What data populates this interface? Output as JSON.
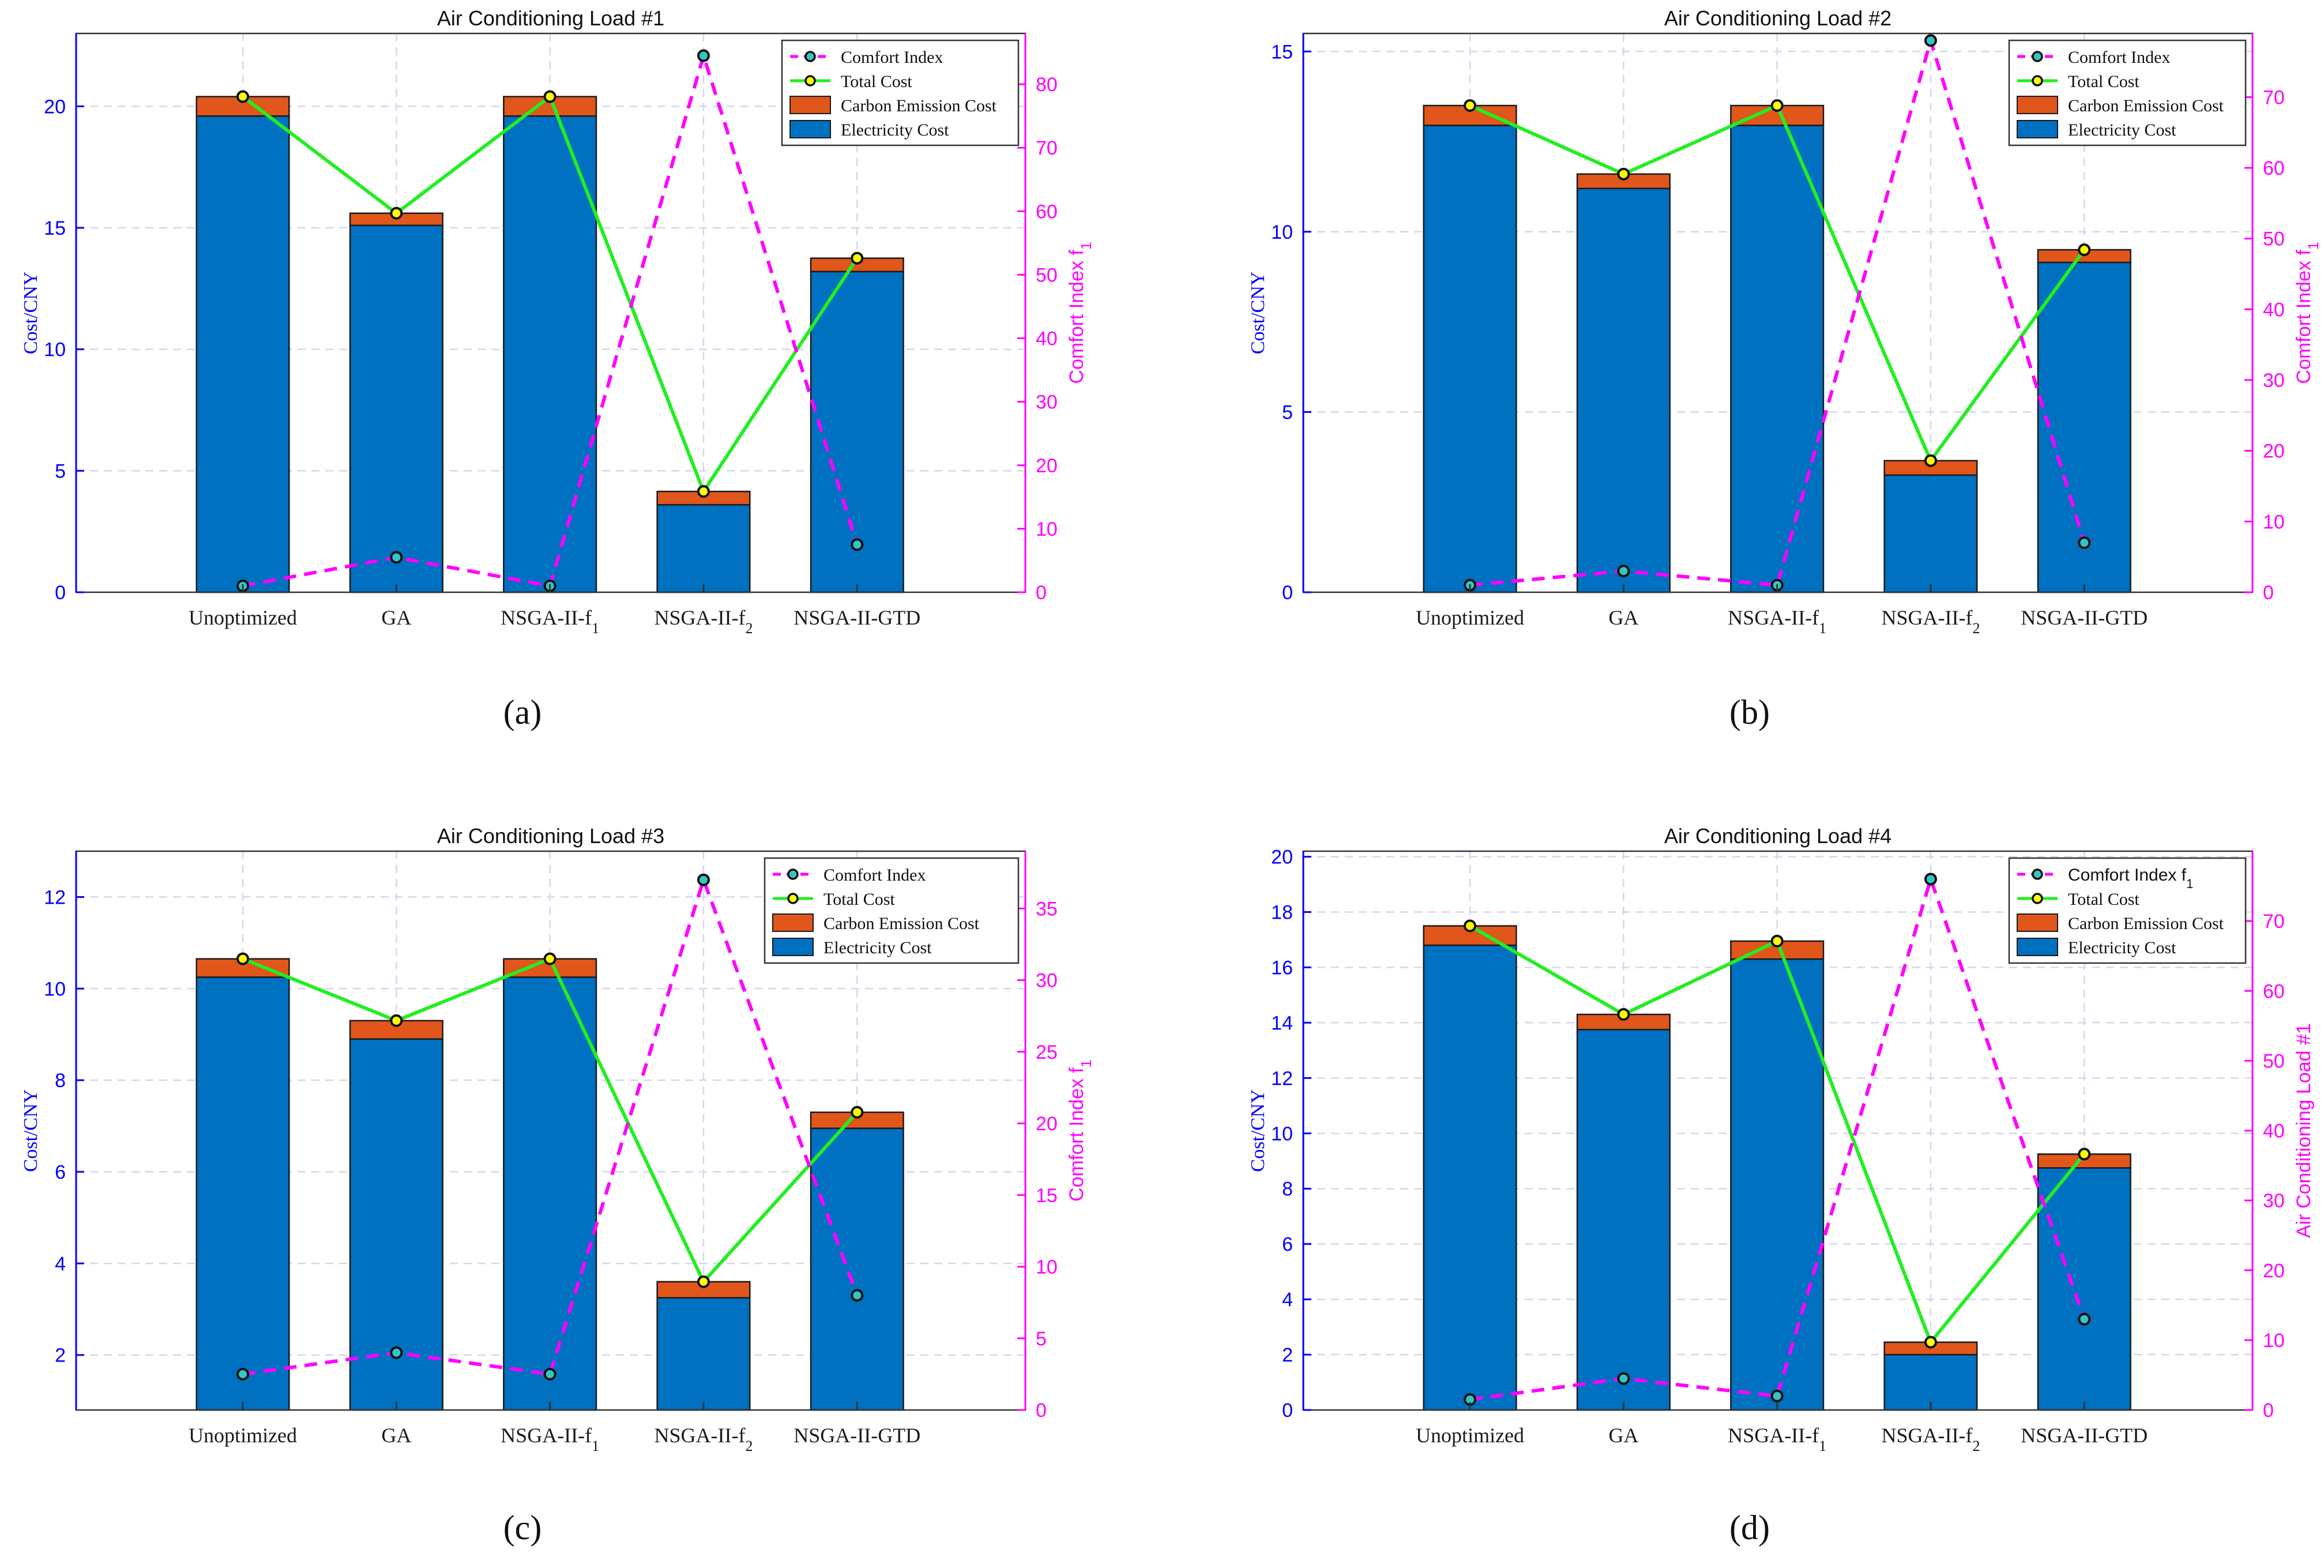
{
  "figure": {
    "bar_colors": {
      "electricity": "#0070C0",
      "carbon": "#E0561B"
    },
    "line_colors": {
      "total": "#22EE22",
      "comfort": "#FF00FF",
      "marker_total": "#FFFF00",
      "marker_comfort": "#33C6C6"
    },
    "axis_colors": {
      "left": "#0000FF",
      "right": "#FF00FF",
      "frame": "#333333",
      "grid": "#D6D6EE"
    }
  },
  "chart_data": [
    {
      "type": "bar",
      "panel_label": "(a)",
      "title": "Air Conditioning Load #1",
      "categories": [
        {
          "main": "Unoptimized",
          "sub": ""
        },
        {
          "main": "GA",
          "sub": ""
        },
        {
          "main": "NSGA-II-f",
          "sub": "1"
        },
        {
          "main": "NSGA-II-f",
          "sub": "2"
        },
        {
          "main": "NSGA-II-GTD",
          "sub": ""
        }
      ],
      "ylabel_left": "Cost/CNY",
      "ylabel_right": {
        "main": "Comfort Index f",
        "sub": "1"
      },
      "ylim_left": [
        0,
        23
      ],
      "yticks_left": [
        0,
        5,
        10,
        15,
        20
      ],
      "ylim_right": [
        0,
        88
      ],
      "yticks_right": [
        0,
        10,
        20,
        30,
        40,
        50,
        60,
        70,
        80
      ],
      "grid": true,
      "legend_position": "top-right",
      "legend": [
        {
          "key": "comfort",
          "text": "Comfort Index",
          "sub": ""
        },
        {
          "key": "total",
          "text": "Total Cost",
          "sub": ""
        },
        {
          "key": "carbon",
          "text": "Carbon Emission Cost",
          "sub": ""
        },
        {
          "key": "electricity",
          "text": "Electricity Cost",
          "sub": ""
        }
      ],
      "series": [
        {
          "name": "Electricity Cost",
          "kind": "stacked-bar",
          "axis": "left",
          "values": [
            19.6,
            15.1,
            19.6,
            3.6,
            13.2
          ]
        },
        {
          "name": "Carbon Emission Cost",
          "kind": "stacked-bar",
          "axis": "left",
          "values": [
            0.8,
            0.5,
            0.8,
            0.55,
            0.55
          ]
        },
        {
          "name": "Total Cost",
          "kind": "line",
          "axis": "left",
          "values": [
            20.4,
            15.6,
            20.4,
            4.15,
            13.75
          ]
        },
        {
          "name": "Comfort Index",
          "kind": "dashed-line",
          "axis": "right",
          "values": [
            1,
            5.5,
            1,
            84.5,
            7.5
          ]
        }
      ]
    },
    {
      "type": "bar",
      "panel_label": "(b)",
      "title": "Air Conditioning Load #2",
      "categories": [
        {
          "main": "Unoptimized",
          "sub": ""
        },
        {
          "main": "GA",
          "sub": ""
        },
        {
          "main": "NSGA-II-f",
          "sub": "1"
        },
        {
          "main": "NSGA-II-f",
          "sub": "2"
        },
        {
          "main": "NSGA-II-GTD",
          "sub": ""
        }
      ],
      "ylabel_left": "Cost/CNY",
      "ylabel_right": {
        "main": "Comfort Index f",
        "sub": "1"
      },
      "ylim_left": [
        0,
        15.5
      ],
      "yticks_left": [
        0,
        5,
        10,
        15
      ],
      "ylim_right": [
        0,
        79
      ],
      "yticks_right": [
        0,
        10,
        20,
        30,
        40,
        50,
        60,
        70
      ],
      "grid": true,
      "legend_position": "top-right",
      "legend": [
        {
          "key": "comfort",
          "text": "Comfort Index",
          "sub": ""
        },
        {
          "key": "total",
          "text": "Total Cost",
          "sub": ""
        },
        {
          "key": "carbon",
          "text": "Carbon Emission Cost",
          "sub": ""
        },
        {
          "key": "electricity",
          "text": "Electricity Cost",
          "sub": ""
        }
      ],
      "series": [
        {
          "name": "Electricity Cost",
          "kind": "stacked-bar",
          "axis": "left",
          "values": [
            12.95,
            11.2,
            12.95,
            3.25,
            9.15
          ]
        },
        {
          "name": "Carbon Emission Cost",
          "kind": "stacked-bar",
          "axis": "left",
          "values": [
            0.55,
            0.4,
            0.55,
            0.4,
            0.35
          ]
        },
        {
          "name": "Total Cost",
          "kind": "line",
          "axis": "left",
          "values": [
            13.5,
            11.6,
            13.5,
            3.65,
            9.5
          ]
        },
        {
          "name": "Comfort Index",
          "kind": "dashed-line",
          "axis": "right",
          "values": [
            1,
            3,
            1,
            78,
            7
          ]
        }
      ]
    },
    {
      "type": "bar",
      "panel_label": "(c)",
      "title": "Air Conditioning Load #3",
      "categories": [
        {
          "main": "Unoptimized",
          "sub": ""
        },
        {
          "main": "GA",
          "sub": ""
        },
        {
          "main": "NSGA-II-f",
          "sub": "1"
        },
        {
          "main": "NSGA-II-f",
          "sub": "2"
        },
        {
          "main": "NSGA-II-GTD",
          "sub": ""
        }
      ],
      "ylabel_left": "Cost/CNY",
      "ylabel_right": {
        "main": "Comfort Index f",
        "sub": "1"
      },
      "ylim_left": [
        0.8,
        13
      ],
      "yticks_left": [
        2,
        4,
        6,
        8,
        10,
        12
      ],
      "ylim_right": [
        0,
        39
      ],
      "yticks_right": [
        0,
        5,
        10,
        15,
        20,
        25,
        30,
        35
      ],
      "grid": true,
      "legend_position": "top-right",
      "legend": [
        {
          "key": "comfort",
          "text": "Comfort Index",
          "sub": ""
        },
        {
          "key": "total",
          "text": "Total Cost",
          "sub": ""
        },
        {
          "key": "carbon",
          "text": "Carbon Emission Cost",
          "sub": ""
        },
        {
          "key": "electricity",
          "text": "Electricity Cost",
          "sub": ""
        }
      ],
      "series": [
        {
          "name": "Electricity Cost",
          "kind": "stacked-bar",
          "axis": "left",
          "values": [
            10.25,
            8.9,
            10.25,
            3.25,
            6.95
          ]
        },
        {
          "name": "Carbon Emission Cost",
          "kind": "stacked-bar",
          "axis": "left",
          "values": [
            0.4,
            0.4,
            0.4,
            0.35,
            0.35
          ]
        },
        {
          "name": "Total Cost",
          "kind": "line",
          "axis": "left",
          "values": [
            10.65,
            9.3,
            10.65,
            3.6,
            7.3
          ]
        },
        {
          "name": "Comfort Index",
          "kind": "dashed-line",
          "axis": "right",
          "values": [
            2.5,
            4,
            2.5,
            37,
            8
          ]
        }
      ]
    },
    {
      "type": "bar",
      "panel_label": "(d)",
      "title": "Air Conditioning Load #4",
      "categories": [
        {
          "main": "Unoptimized",
          "sub": ""
        },
        {
          "main": "GA",
          "sub": ""
        },
        {
          "main": "NSGA-II-f",
          "sub": "1"
        },
        {
          "main": "NSGA-II-f",
          "sub": "2"
        },
        {
          "main": "NSGA-II-GTD",
          "sub": ""
        }
      ],
      "ylabel_left": "Cost/CNY",
      "ylabel_right": {
        "main": "Air Conditioning Load #1",
        "sub": ""
      },
      "ylim_left": [
        0,
        20.2
      ],
      "yticks_left": [
        0,
        2,
        4,
        6,
        8,
        10,
        12,
        14,
        16,
        18,
        20
      ],
      "ylim_right": [
        0,
        80
      ],
      "yticks_right": [
        0,
        10,
        20,
        30,
        40,
        50,
        60,
        70
      ],
      "grid": true,
      "legend_position": "top-right",
      "legend": [
        {
          "key": "comfort",
          "text": "Comfort Index f",
          "sub": "1"
        },
        {
          "key": "total",
          "text": "Total Cost",
          "sub": ""
        },
        {
          "key": "carbon",
          "text": "Carbon Emission Cost",
          "sub": ""
        },
        {
          "key": "electricity",
          "text": "Electricity Cost",
          "sub": ""
        }
      ],
      "series": [
        {
          "name": "Electricity Cost",
          "kind": "stacked-bar",
          "axis": "left",
          "values": [
            16.8,
            13.75,
            16.3,
            2,
            8.75
          ]
        },
        {
          "name": "Carbon Emission Cost",
          "kind": "stacked-bar",
          "axis": "left",
          "values": [
            0.7,
            0.55,
            0.65,
            0.45,
            0.5
          ]
        },
        {
          "name": "Total Cost",
          "kind": "line",
          "axis": "left",
          "values": [
            17.5,
            14.3,
            16.95,
            2.45,
            9.25
          ]
        },
        {
          "name": "Comfort Index",
          "kind": "dashed-line",
          "axis": "right",
          "values": [
            1.5,
            4.5,
            2,
            76,
            13
          ]
        }
      ]
    }
  ]
}
